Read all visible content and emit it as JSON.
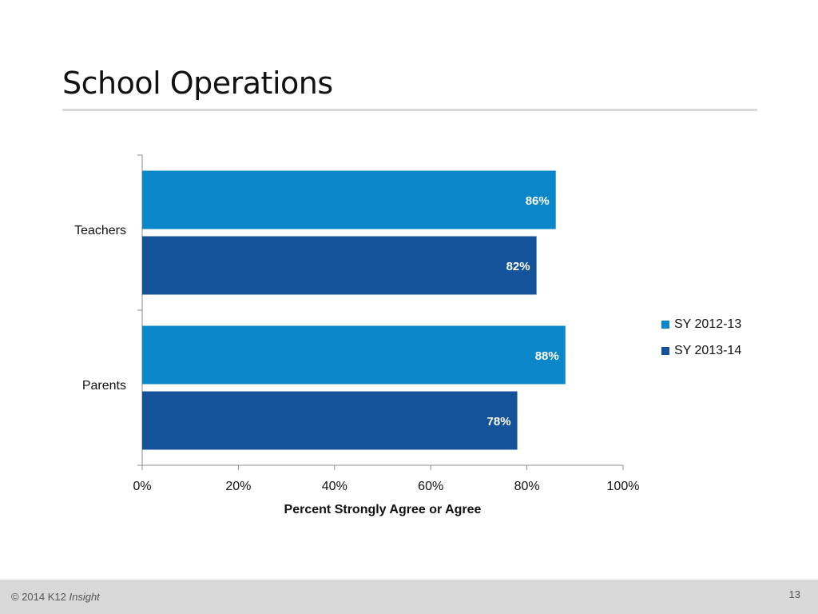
{
  "slide": {
    "title": "School Operations",
    "footer_copyright": "© 2014 K12",
    "footer_brand": "Insight",
    "page_number": "13"
  },
  "chart_data": {
    "type": "bar",
    "orientation": "horizontal",
    "categories": [
      "Teachers",
      "Parents"
    ],
    "series": [
      {
        "name": "SY 2012-13",
        "values": [
          86,
          88
        ],
        "labels": [
          "86%",
          "88%"
        ],
        "color": "#0b86c8"
      },
      {
        "name": "SY 2013-14",
        "values": [
          82,
          78
        ],
        "labels": [
          "82%",
          "78%"
        ],
        "color": "#14539a"
      }
    ],
    "xlabel": "Percent Strongly Agree or Agree",
    "ylabel": "",
    "xlim": [
      0,
      100
    ],
    "x_ticks": [
      0,
      20,
      40,
      60,
      80,
      100
    ],
    "x_tick_labels": [
      "0%",
      "20%",
      "40%",
      "60%",
      "80%",
      "100%"
    ],
    "grid": false,
    "legend_position": "right",
    "data_label_color": "#ffffff"
  }
}
